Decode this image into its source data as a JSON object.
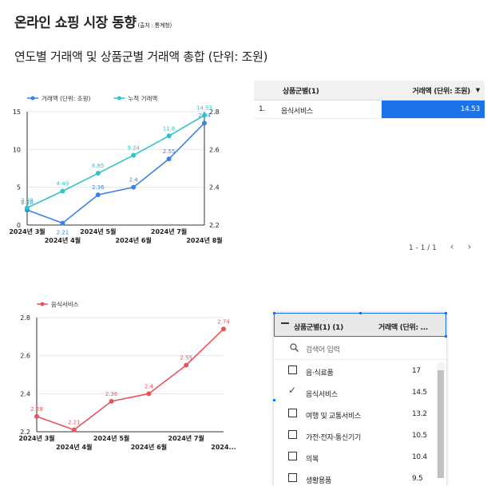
{
  "header": {
    "title": "온라인 쇼핑 시장 동향",
    "source_note": "(출처 : 통계청)",
    "subtitle": "연도별 거래액 및 상품군별 거래액 총합 (단위: 조원)"
  },
  "table1": {
    "col_category": "상품군별(1)",
    "col_value": "거래액 (단위: 조원)",
    "sort_icon": "caret-down-icon",
    "rows": [
      {
        "index": "1.",
        "category": "음식서비스",
        "value": "14.53"
      }
    ],
    "bar_color": "#1a73e8"
  },
  "pager": {
    "text": "1 - 1 / 1",
    "prev": "‹",
    "next": "›"
  },
  "filter": {
    "header_category": "상품군별(1) (1)",
    "header_value": "거래액 (단위: ...",
    "search_placeholder": "검색어 입력",
    "items": [
      {
        "label": "음·식료품",
        "count": "17",
        "checked": false
      },
      {
        "label": "음식서비스",
        "count": "14.5",
        "checked": true
      },
      {
        "label": "여행 및 교통서비스",
        "count": "13.2",
        "checked": false
      },
      {
        "label": "가전·전자·통신기기",
        "count": "10.5",
        "checked": false
      },
      {
        "label": "의복",
        "count": "10.4",
        "checked": false
      },
      {
        "label": "생활용품",
        "count": "9.5",
        "checked": false
      }
    ]
  },
  "chart_data": [
    {
      "type": "line",
      "legend_position": "top-left",
      "categories": [
        "2024년 3월",
        "2024년 4월",
        "2024년 5월",
        "2024년 6월",
        "2024년 7월",
        "2024년 8월"
      ],
      "series": [
        {
          "name": "거래액 (단위: 조원)",
          "axis": "right",
          "color": "#3b82e6",
          "values": [
            2.28,
            2.21,
            2.36,
            2.4,
            2.55,
            2.74
          ],
          "labels": [
            "2.28",
            "2.21",
            "2.36",
            "2.4",
            "2.55",
            "2.74"
          ]
        },
        {
          "name": "누적 거래액",
          "axis": "left",
          "color": "#2ec4c9",
          "values": [
            2.28,
            4.49,
            6.85,
            9.24,
            11.8,
            14.53
          ],
          "labels": [
            "2.28",
            "4.49",
            "6.85",
            "9.24",
            "11.8",
            "14.53"
          ]
        }
      ],
      "y_left": {
        "ylim": [
          0,
          15
        ],
        "ticks": [
          0,
          5,
          10,
          15
        ]
      },
      "y_right": {
        "ylim": [
          2.2,
          2.8
        ],
        "ticks": [
          2.2,
          2.4,
          2.6,
          2.8
        ]
      },
      "grid": true
    },
    {
      "type": "line",
      "legend_position": "top-left",
      "categories": [
        "2024년 3월",
        "2024년 4월",
        "2024년 5월",
        "2024년 6월",
        "2024년 7월",
        "2024..."
      ],
      "series": [
        {
          "name": "음식서비스",
          "color": "#e8545a",
          "values": [
            2.28,
            2.21,
            2.36,
            2.4,
            2.55,
            2.74
          ],
          "labels": [
            "2.28",
            "2.21",
            "2.36",
            "2.4",
            "2.55",
            "2.74"
          ]
        }
      ],
      "y_left": {
        "ylim": [
          2.2,
          2.8
        ],
        "ticks": [
          2.2,
          2.4,
          2.6,
          2.8
        ]
      },
      "grid": true
    }
  ]
}
